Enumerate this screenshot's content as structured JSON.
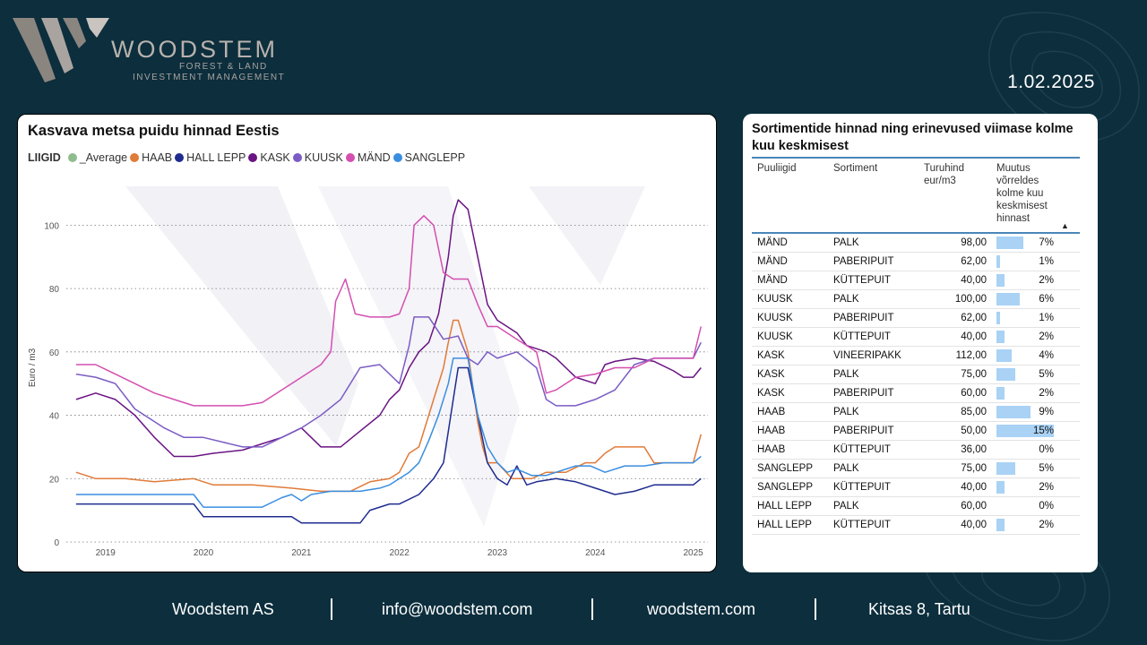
{
  "brand": {
    "name": "WOODSTEM",
    "tagline1": "FOREST & LAND",
    "tagline2": "INVESTMENT MANAGEMENT"
  },
  "date": "1.02.2025",
  "chart": {
    "title": "Kasvava metsa puidu hinnad Eestis",
    "legend_title": "LIIGID"
  },
  "chart_data": {
    "type": "line",
    "title": "Kasvava metsa puidu hinnad Eestis",
    "xlabel": "",
    "ylabel": "Euro / m3",
    "xlim": [
      2018.6,
      2025.15
    ],
    "ylim": [
      0,
      110
    ],
    "yticks": [
      0,
      20,
      40,
      60,
      80,
      100
    ],
    "xticks": [
      "2019",
      "2020",
      "2021",
      "2022",
      "2023",
      "2024",
      "2025"
    ],
    "grid": "horizontal dotted",
    "legend_position": "top-left",
    "series": [
      {
        "name": "_Average",
        "color": "#8fbc8f",
        "x": [],
        "y": []
      },
      {
        "name": "HAAB",
        "color": "#e07b39",
        "x": [
          2018.7,
          2018.9,
          2019.2,
          2019.5,
          2019.9,
          2020.1,
          2020.5,
          2020.9,
          2021.2,
          2021.5,
          2021.7,
          2021.9,
          2022.0,
          2022.1,
          2022.2,
          2022.3,
          2022.35,
          2022.45,
          2022.5,
          2022.55,
          2022.6,
          2022.7,
          2022.8,
          2022.85,
          2022.9,
          2023.0,
          2023.15,
          2023.35,
          2023.5,
          2023.7,
          2023.9,
          2024.0,
          2024.1,
          2024.2,
          2024.35,
          2024.5,
          2024.6,
          2024.8,
          2025.0,
          2025.08
        ],
        "y": [
          22,
          20,
          20,
          19,
          20,
          18,
          18,
          17,
          16,
          16,
          19,
          20,
          22,
          28,
          30,
          40,
          45,
          55,
          63,
          70,
          70,
          60,
          38,
          30,
          25,
          25,
          20,
          20,
          22,
          22,
          25,
          25,
          28,
          30,
          30,
          30,
          25,
          25,
          25,
          34
        ]
      },
      {
        "name": "HALL LEPP",
        "color": "#1f2c8f",
        "x": [
          2018.7,
          2019.4,
          2019.9,
          2020.0,
          2020.6,
          2020.9,
          2021.0,
          2021.6,
          2021.7,
          2021.9,
          2022.0,
          2022.2,
          2022.35,
          2022.45,
          2022.55,
          2022.6,
          2022.7,
          2022.8,
          2022.9,
          2023.0,
          2023.1,
          2023.2,
          2023.3,
          2023.4,
          2023.6,
          2023.8,
          2024.0,
          2024.2,
          2024.4,
          2024.6,
          2024.8,
          2025.0,
          2025.08
        ],
        "y": [
          12,
          12,
          12,
          8,
          8,
          8,
          6,
          6,
          10,
          12,
          12,
          15,
          20,
          25,
          45,
          55,
          55,
          40,
          25,
          20,
          18,
          24,
          18,
          19,
          20,
          19,
          17,
          15,
          16,
          18,
          18,
          18,
          20
        ]
      },
      {
        "name": "KASK",
        "color": "#6a1483",
        "x": [
          2018.7,
          2018.9,
          2019.1,
          2019.3,
          2019.5,
          2019.7,
          2019.9,
          2020.1,
          2020.4,
          2020.6,
          2020.8,
          2021.0,
          2021.2,
          2021.4,
          2021.6,
          2021.8,
          2021.9,
          2022.0,
          2022.1,
          2022.2,
          2022.3,
          2022.4,
          2022.5,
          2022.55,
          2022.6,
          2022.7,
          2022.8,
          2022.9,
          2023.0,
          2023.1,
          2023.2,
          2023.3,
          2023.5,
          2023.6,
          2023.8,
          2024.0,
          2024.1,
          2024.2,
          2024.4,
          2024.6,
          2024.8,
          2024.9,
          2025.0,
          2025.08
        ],
        "y": [
          45,
          47,
          45,
          40,
          33,
          27,
          27,
          28,
          29,
          31,
          33,
          36,
          30,
          30,
          35,
          40,
          45,
          48,
          55,
          60,
          63,
          72,
          90,
          103,
          108,
          105,
          90,
          75,
          70,
          68,
          66,
          62,
          60,
          58,
          52,
          50,
          56,
          57,
          58,
          57,
          54,
          52,
          52,
          55
        ]
      },
      {
        "name": "KUUSK",
        "color": "#7b5cc4",
        "x": [
          2018.7,
          2018.9,
          2019.1,
          2019.3,
          2019.6,
          2019.8,
          2020.0,
          2020.4,
          2020.6,
          2020.8,
          2021.0,
          2021.2,
          2021.4,
          2021.6,
          2021.8,
          2022.0,
          2022.1,
          2022.15,
          2022.3,
          2022.45,
          2022.6,
          2022.7,
          2022.8,
          2022.9,
          2023.0,
          2023.2,
          2023.4,
          2023.5,
          2023.6,
          2023.8,
          2024.0,
          2024.2,
          2024.4,
          2024.6,
          2024.8,
          2025.0,
          2025.08
        ],
        "y": [
          53,
          52,
          50,
          42,
          36,
          33,
          33,
          30,
          30,
          33,
          36,
          40,
          45,
          55,
          56,
          50,
          62,
          71,
          71,
          64,
          65,
          58,
          56,
          60,
          58,
          60,
          55,
          45,
          43,
          43,
          45,
          48,
          56,
          58,
          58,
          58,
          63
        ]
      },
      {
        "name": "MÄND",
        "color": "#d44fb0",
        "x": [
          2018.7,
          2018.9,
          2019.1,
          2019.3,
          2019.5,
          2019.7,
          2019.9,
          2020.0,
          2020.4,
          2020.6,
          2020.8,
          2021.0,
          2021.2,
          2021.3,
          2021.35,
          2021.45,
          2021.55,
          2021.7,
          2021.9,
          2022.0,
          2022.1,
          2022.15,
          2022.25,
          2022.35,
          2022.45,
          2022.55,
          2022.7,
          2022.8,
          2022.9,
          2023.0,
          2023.2,
          2023.4,
          2023.5,
          2023.6,
          2023.8,
          2024.0,
          2024.2,
          2024.4,
          2024.6,
          2024.8,
          2025.0,
          2025.08
        ],
        "y": [
          56,
          56,
          53,
          50,
          47,
          45,
          43,
          43,
          43,
          44,
          48,
          52,
          56,
          60,
          76,
          83,
          72,
          71,
          71,
          72,
          80,
          100,
          103,
          100,
          85,
          83,
          83,
          75,
          68,
          68,
          64,
          60,
          47,
          48,
          52,
          53,
          55,
          55,
          58,
          58,
          58,
          68
        ]
      },
      {
        "name": "SANGLEPP",
        "color": "#3a8ee0",
        "x": [
          2018.7,
          2019.4,
          2019.9,
          2020.0,
          2020.6,
          2020.8,
          2020.9,
          2021.0,
          2021.1,
          2021.3,
          2021.6,
          2021.8,
          2021.9,
          2022.0,
          2022.1,
          2022.2,
          2022.3,
          2022.4,
          2022.5,
          2022.55,
          2022.6,
          2022.7,
          2022.8,
          2022.9,
          2023.0,
          2023.1,
          2023.2,
          2023.35,
          2023.5,
          2023.6,
          2023.8,
          2023.95,
          2024.1,
          2024.3,
          2024.5,
          2024.7,
          2024.9,
          2025.0,
          2025.08
        ],
        "y": [
          15,
          15,
          15,
          11,
          11,
          14,
          15,
          13,
          15,
          16,
          16,
          17,
          18,
          20,
          22,
          25,
          32,
          40,
          50,
          58,
          58,
          58,
          40,
          30,
          25,
          22,
          23,
          21,
          21,
          22,
          24,
          24,
          22,
          24,
          24,
          25,
          25,
          25,
          27
        ]
      }
    ]
  },
  "table": {
    "title": "Sortimentide hinnad ning erinevused viimase kolme kuu keskmisest",
    "headers": {
      "col1": "Puuliigid",
      "col2": "Sortiment",
      "col3a": "Turuhind",
      "col3b": "eur/m3",
      "col4a": "Muutus",
      "col4b": "võrreldes",
      "col4c": "kolme kuu",
      "col4d": "keskmisest",
      "col4e": "hinnast"
    },
    "rows": [
      {
        "species": "MÄND",
        "assortment": "PALK",
        "price": "98,00",
        "change": "7%",
        "pct": 7
      },
      {
        "species": "MÄND",
        "assortment": "PABERIPUIT",
        "price": "62,00",
        "change": "1%",
        "pct": 1
      },
      {
        "species": "MÄND",
        "assortment": "KÜTTEPUIT",
        "price": "40,00",
        "change": "2%",
        "pct": 2
      },
      {
        "species": "KUUSK",
        "assortment": "PALK",
        "price": "100,00",
        "change": "6%",
        "pct": 6
      },
      {
        "species": "KUUSK",
        "assortment": "PABERIPUIT",
        "price": "62,00",
        "change": "1%",
        "pct": 1
      },
      {
        "species": "KUUSK",
        "assortment": "KÜTTEPUIT",
        "price": "40,00",
        "change": "2%",
        "pct": 2
      },
      {
        "species": "KASK",
        "assortment": "VINEERIPAKK",
        "price": "112,00",
        "change": "4%",
        "pct": 4
      },
      {
        "species": "KASK",
        "assortment": "PALK",
        "price": "75,00",
        "change": "5%",
        "pct": 5
      },
      {
        "species": "KASK",
        "assortment": "PABERIPUIT",
        "price": "60,00",
        "change": "2%",
        "pct": 2
      },
      {
        "species": "HAAB",
        "assortment": "PALK",
        "price": "85,00",
        "change": "9%",
        "pct": 9
      },
      {
        "species": "HAAB",
        "assortment": "PABERIPUIT",
        "price": "50,00",
        "change": "15%",
        "pct": 15
      },
      {
        "species": "HAAB",
        "assortment": "KÜTTEPUIT",
        "price": "36,00",
        "change": "0%",
        "pct": 0
      },
      {
        "species": "SANGLEPP",
        "assortment": "PALK",
        "price": "75,00",
        "change": "5%",
        "pct": 5
      },
      {
        "species": "SANGLEPP",
        "assortment": "KÜTTEPUIT",
        "price": "40,00",
        "change": "2%",
        "pct": 2
      },
      {
        "species": "HALL LEPP",
        "assortment": "PALK",
        "price": "60,00",
        "change": "0%",
        "pct": 0
      },
      {
        "species": "HALL LEPP",
        "assortment": "KÜTTEPUIT",
        "price": "40,00",
        "change": "2%",
        "pct": 2
      }
    ]
  },
  "footer": {
    "company": "Woodstem AS",
    "email": "info@woodstem.com",
    "website": "woodstem.com",
    "address": "Kitsas 8, Tartu"
  }
}
